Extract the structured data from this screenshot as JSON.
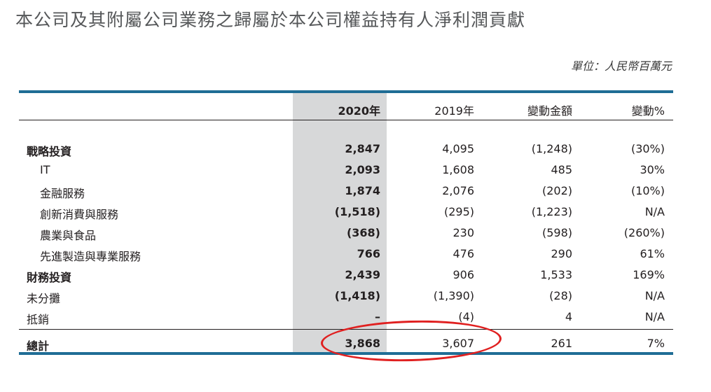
{
  "title": "本公司及其附屬公司業務之歸屬於本公司權益持有人淨利潤貢獻",
  "unit": "單位：人民幣百萬元",
  "headers": [
    "2020年",
    "2019年",
    "變動金額",
    "變動%"
  ],
  "rows": [
    {
      "label": "戰略投資",
      "v2020": "2,847",
      "v2019": "4,095",
      "change": "(1,248)",
      "pct": "(30%)"
    },
    {
      "label": "IT",
      "v2020": "2,093",
      "v2019": "1,608",
      "change": "485",
      "pct": "30%"
    },
    {
      "label": "金融服務",
      "v2020": "1,874",
      "v2019": "2,076",
      "change": "(202)",
      "pct": "(10%)"
    },
    {
      "label": "創新消費與服務",
      "v2020": "(1,518)",
      "v2019": "(295)",
      "change": "(1,223)",
      "pct": "N/A"
    },
    {
      "label": "農業與食品",
      "v2020": "(368)",
      "v2019": "230",
      "change": "(598)",
      "pct": "(260%)"
    },
    {
      "label": "先進製造與專業服務",
      "v2020": "766",
      "v2019": "476",
      "change": "290",
      "pct": "61%"
    },
    {
      "label": "財務投資",
      "v2020": "2,439",
      "v2019": "906",
      "change": "1,533",
      "pct": "169%"
    },
    {
      "label": "未分攤",
      "v2020": "(1,418)",
      "v2019": "(1,390)",
      "change": "(28)",
      "pct": "N/A"
    },
    {
      "label": "抵銷",
      "v2020": "–",
      "v2019": "(4)",
      "change": "4",
      "pct": "N/A"
    }
  ],
  "total": {
    "label": "總計",
    "v2020": "3,868",
    "v2019": "3,607",
    "change": "261",
    "pct": "7%"
  },
  "colors": {
    "rule": "#1f6d95",
    "highlight_column": "#d7d8d9",
    "annotation_circle": "#e02020"
  }
}
